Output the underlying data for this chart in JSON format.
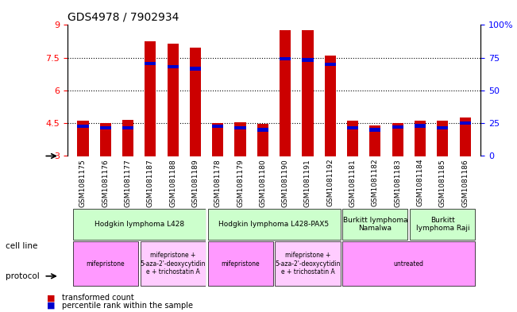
{
  "title": "GDS4978 / 7902934",
  "samples": [
    "GSM1081175",
    "GSM1081176",
    "GSM1081177",
    "GSM1081187",
    "GSM1081188",
    "GSM1081189",
    "GSM1081178",
    "GSM1081179",
    "GSM1081180",
    "GSM1081190",
    "GSM1081191",
    "GSM1081192",
    "GSM1081181",
    "GSM1081182",
    "GSM1081183",
    "GSM1081184",
    "GSM1081185",
    "GSM1081186"
  ],
  "red_values": [
    4.6,
    4.5,
    4.65,
    8.25,
    8.15,
    7.95,
    4.5,
    4.55,
    4.47,
    8.75,
    8.75,
    7.6,
    4.6,
    4.4,
    4.5,
    4.6,
    4.6,
    4.75
  ],
  "blue_values": [
    4.35,
    4.3,
    4.3,
    7.25,
    7.1,
    7.0,
    4.35,
    4.3,
    4.2,
    7.45,
    7.4,
    7.2,
    4.3,
    4.2,
    4.32,
    4.38,
    4.3,
    4.5
  ],
  "ylim": [
    3,
    9
  ],
  "yticks_left": [
    3,
    4.5,
    6,
    7.5,
    9
  ],
  "yticks_right": [
    0,
    25,
    50,
    75,
    100
  ],
  "ytick_labels_right": [
    "0",
    "25",
    "50",
    "75",
    "100%"
  ],
  "dotted_lines": [
    4.5,
    6.0,
    7.5
  ],
  "bar_color": "#cc0000",
  "blue_color": "#0000cc",
  "bar_width": 0.5,
  "cell_line_groups": [
    {
      "label": "Hodgkin lymphoma L428",
      "start": 0,
      "end": 5,
      "color": "#ccffcc"
    },
    {
      "label": "Hodgkin lymphoma L428-PAX5",
      "start": 6,
      "end": 11,
      "color": "#ccffcc"
    },
    {
      "label": "Burkitt lymphoma\nNamalwa",
      "start": 12,
      "end": 14,
      "color": "#ccffcc"
    },
    {
      "label": "Burkitt\nlymphoma Raji",
      "start": 15,
      "end": 17,
      "color": "#ccffcc"
    }
  ],
  "protocol_groups": [
    {
      "label": "mifepristone",
      "start": 0,
      "end": 2,
      "color": "#ff99ff"
    },
    {
      "label": "mifepristone +\n5-aza-2'-deoxycytidin\ne + trichostatin A",
      "start": 3,
      "end": 5,
      "color": "#ffccff"
    },
    {
      "label": "mifepristone",
      "start": 6,
      "end": 8,
      "color": "#ff99ff"
    },
    {
      "label": "mifepristone +\n5-aza-2'-deoxycytidin\ne + trichostatin A",
      "start": 9,
      "end": 11,
      "color": "#ffccff"
    },
    {
      "label": "untreated",
      "start": 12,
      "end": 17,
      "color": "#ff99ff"
    }
  ],
  "legend_items": [
    {
      "label": "transformed count",
      "color": "#cc0000"
    },
    {
      "label": "percentile rank within the sample",
      "color": "#0000cc"
    }
  ]
}
